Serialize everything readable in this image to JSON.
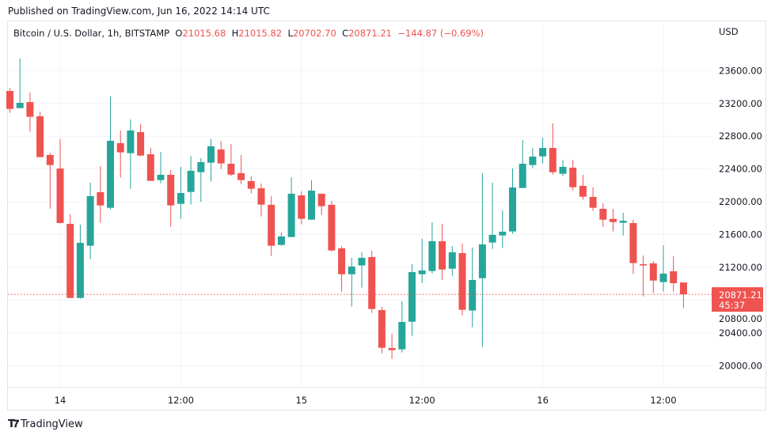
{
  "header": {
    "published": "Published on TradingView.com, Jun 16, 2022 14:14 UTC"
  },
  "legend": {
    "symbol": "Bitcoin / U.S. Dollar, 1h, BITSTAMP",
    "o_label": "O",
    "o": "21015.68",
    "h_label": "H",
    "h": "21015.82",
    "l_label": "L",
    "l": "20702.70",
    "c_label": "C",
    "c": "20871.21",
    "change": "−144.87 (−0.69%)"
  },
  "currency": "USD",
  "footer": {
    "brand": "TradingView"
  },
  "colors": {
    "up": "#26a69a",
    "down": "#ef5350",
    "grid": "#f0f3fa"
  },
  "chart_data": {
    "type": "candlestick",
    "interval": "1h",
    "ylim": [
      19550,
      23900
    ],
    "y_ticks": [
      20000,
      20400,
      20800,
      21200,
      21600,
      22000,
      22400,
      22800,
      23200,
      23600
    ],
    "y_tick_labels": [
      "20000.00",
      "20400.00",
      "20800.00",
      "21200.00",
      "21600.00",
      "22000.00",
      "22400.00",
      "22800.00",
      "23200.00",
      "23600.00"
    ],
    "x_ticks": [
      {
        "hour": 0,
        "label": "14"
      },
      {
        "hour": 12,
        "label": "12:00"
      },
      {
        "hour": 24,
        "label": "15"
      },
      {
        "hour": 36,
        "label": "12:00"
      },
      {
        "hour": 48,
        "label": "16"
      },
      {
        "hour": 60,
        "label": "12:00"
      }
    ],
    "x_start": "Jun 13 19:00",
    "last_price": {
      "value": "20871.21",
      "countdown": "45:37"
    },
    "grid": true,
    "candles_ohlc": [
      [
        23352,
        23384,
        23085,
        23133
      ],
      [
        23143,
        23748,
        23143,
        23207
      ],
      [
        23217,
        23333,
        22854,
        23037
      ],
      [
        23043,
        23101,
        22545,
        22545
      ],
      [
        22571,
        22599,
        21917,
        22448
      ],
      [
        22406,
        22764,
        21734,
        21741
      ],
      [
        21731,
        21850,
        20827,
        20827
      ],
      [
        20827,
        21721,
        20817,
        21499
      ],
      [
        21464,
        22233,
        21300,
        22069
      ],
      [
        22117,
        22435,
        21744,
        21956
      ],
      [
        21927,
        23285,
        21908,
        22744
      ],
      [
        22715,
        22870,
        22294,
        22603
      ],
      [
        22593,
        23005,
        22159,
        22870
      ],
      [
        22850,
        22947,
        22555,
        22564
      ],
      [
        22580,
        22657,
        22255,
        22255
      ],
      [
        22265,
        22609,
        22226,
        22329
      ],
      [
        22329,
        22387,
        21695,
        21956
      ],
      [
        21975,
        22426,
        21792,
        22107
      ],
      [
        22120,
        22561,
        21966,
        22378
      ],
      [
        22361,
        22532,
        22001,
        22484
      ],
      [
        22477,
        22764,
        22246,
        22677
      ],
      [
        22638,
        22744,
        22400,
        22468
      ],
      [
        22464,
        22706,
        22313,
        22332
      ],
      [
        22349,
        22571,
        22217,
        22265
      ],
      [
        22252,
        22310,
        22101,
        22159
      ],
      [
        22165,
        22223,
        21821,
        21966
      ],
      [
        21963,
        22069,
        21338,
        21464
      ],
      [
        21474,
        21625,
        21464,
        21577
      ],
      [
        21570,
        22300,
        21570,
        22098
      ],
      [
        22078,
        22127,
        21724,
        21792
      ],
      [
        21782,
        22262,
        21782,
        22136
      ],
      [
        22098,
        22098,
        21840,
        21946
      ],
      [
        21963,
        22011,
        21393,
        21406
      ],
      [
        21432,
        21461,
        20904,
        21116
      ],
      [
        21116,
        21316,
        20721,
        21210
      ],
      [
        21223,
        21384,
        20953,
        21316
      ],
      [
        21326,
        21403,
        20644,
        20692
      ],
      [
        20679,
        20718,
        20151,
        20219
      ],
      [
        20216,
        20390,
        20084,
        20190
      ],
      [
        20200,
        20785,
        20161,
        20534
      ],
      [
        20537,
        21239,
        20364,
        21142
      ],
      [
        21116,
        21548,
        21010,
        21162
      ],
      [
        21155,
        21750,
        21126,
        21519
      ],
      [
        21519,
        21731,
        21049,
        21174
      ],
      [
        21184,
        21461,
        21097,
        21384
      ],
      [
        21374,
        21490,
        20615,
        20682
      ],
      [
        20673,
        21442,
        20470,
        21046
      ],
      [
        21068,
        22349,
        20229,
        21480
      ],
      [
        21503,
        22233,
        21425,
        21596
      ],
      [
        21589,
        21895,
        21435,
        21635
      ],
      [
        21638,
        22406,
        21609,
        22175
      ],
      [
        22168,
        22754,
        22168,
        22464
      ],
      [
        22448,
        22657,
        22410,
        22551
      ],
      [
        22554,
        22783,
        22468,
        22657
      ],
      [
        22657,
        22957,
        22332,
        22361
      ],
      [
        22342,
        22513,
        22313,
        22426
      ],
      [
        22416,
        22513,
        22139,
        22178
      ],
      [
        22194,
        22329,
        22024,
        22062
      ],
      [
        22059,
        22175,
        21889,
        21927
      ],
      [
        21914,
        21982,
        21696,
        21782
      ],
      [
        21792,
        21914,
        21638,
        21753
      ],
      [
        21744,
        21866,
        21589,
        21769
      ],
      [
        21741,
        21779,
        21117,
        21252
      ],
      [
        21239,
        21345,
        20846,
        21223
      ],
      [
        21249,
        21277,
        20885,
        21039
      ],
      [
        21020,
        21470,
        20904,
        21123
      ],
      [
        21152,
        21335,
        20904,
        21007
      ],
      [
        21015.68,
        21015.82,
        20702.7,
        20871.21
      ]
    ]
  }
}
